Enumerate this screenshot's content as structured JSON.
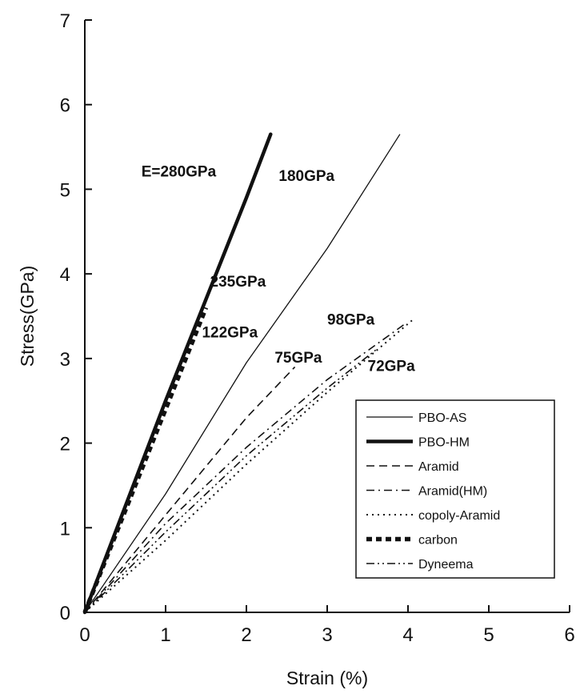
{
  "chart_data": {
    "type": "line",
    "xlabel": "Strain (%)",
    "ylabel": "Stress(GPa)",
    "xlim": [
      0,
      6
    ],
    "ylim": [
      0,
      7
    ],
    "xticks": [
      "0",
      "1",
      "2",
      "3",
      "4",
      "5",
      "6"
    ],
    "yticks": [
      "0",
      "1",
      "2",
      "3",
      "4",
      "5",
      "6",
      "7"
    ],
    "grid": false,
    "legend_position": "lower-right",
    "series": [
      {
        "name": "PBO-AS",
        "style": "solid-thin",
        "x": [
          0,
          1,
          2,
          3,
          3.9
        ],
        "y": [
          0,
          1.4,
          2.95,
          4.3,
          5.65
        ]
      },
      {
        "name": "PBO-HM",
        "style": "solid-thick",
        "x": [
          0,
          1,
          2,
          2.3
        ],
        "y": [
          0,
          2.5,
          4.9,
          5.65
        ]
      },
      {
        "name": "Aramid",
        "style": "dashed",
        "x": [
          0,
          1,
          2,
          2.6
        ],
        "y": [
          0,
          1.15,
          2.3,
          2.9
        ]
      },
      {
        "name": "Aramid(HM)",
        "style": "dash-dot",
        "x": [
          0,
          1,
          2,
          3,
          3.95
        ],
        "y": [
          0,
          1.05,
          1.95,
          2.75,
          3.4
        ]
      },
      {
        "name": "copoly-Aramid",
        "style": "dotted",
        "x": [
          0,
          1,
          2,
          3,
          4.05
        ],
        "y": [
          0,
          0.85,
          1.75,
          2.6,
          3.45
        ]
      },
      {
        "name": "carbon",
        "style": "thick-dashed",
        "x": [
          0,
          0.5,
          1,
          1.5
        ],
        "y": [
          0,
          1.2,
          2.4,
          3.6
        ]
      },
      {
        "name": "Dyneema",
        "style": "dash-dot-dot",
        "x": [
          0,
          1,
          2,
          3,
          3.6
        ],
        "y": [
          0,
          0.95,
          1.85,
          2.65,
          3.1
        ]
      }
    ],
    "annotations": [
      {
        "text": "E=280GPa",
        "x": 0.7,
        "y": 5.15
      },
      {
        "text": "180GPa",
        "x": 2.4,
        "y": 5.1
      },
      {
        "text": "235GPa",
        "x": 1.55,
        "y": 3.85
      },
      {
        "text": "122GPa",
        "x": 1.45,
        "y": 3.25
      },
      {
        "text": "98GPa",
        "x": 3.0,
        "y": 3.4
      },
      {
        "text": "75GPa",
        "x": 2.35,
        "y": 2.95
      },
      {
        "text": "72GPa",
        "x": 3.5,
        "y": 2.85
      }
    ]
  }
}
